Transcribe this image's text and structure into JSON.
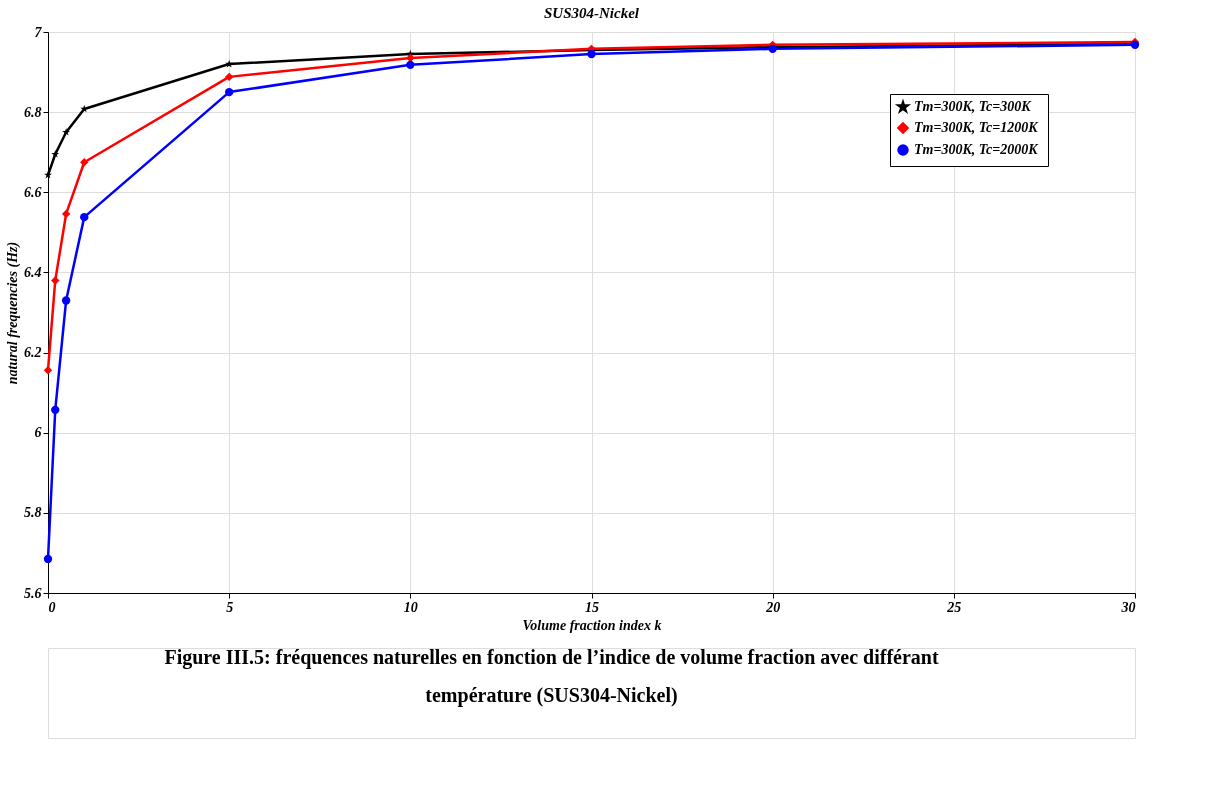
{
  "chart_data": {
    "type": "line",
    "title": "SUS304-Nickel",
    "xlabel": "Volume fraction index k",
    "ylabel": "natural frequencies (Hz)",
    "x": [
      0,
      0.2,
      0.5,
      1,
      5,
      10,
      15,
      20,
      30
    ],
    "series": [
      {
        "name": "Tm=300K,  Tc=300K",
        "color": "#000000",
        "marker": "star",
        "values": [
          6.643,
          6.695,
          6.75,
          6.808,
          6.92,
          6.945,
          6.955,
          6.962,
          6.97
        ]
      },
      {
        "name": "Tm=300K,  Tc=1200K",
        "color": "#ff0000",
        "marker": "diamond",
        "values": [
          6.156,
          6.38,
          6.546,
          6.675,
          6.888,
          6.935,
          6.958,
          6.968,
          6.975
        ]
      },
      {
        "name": "Tm=300K,  Tc=2000K",
        "color": "#0000ff",
        "marker": "circle",
        "values": [
          5.685,
          6.057,
          6.33,
          6.538,
          6.85,
          6.918,
          6.945,
          6.958,
          6.968
        ]
      }
    ],
    "xlim": [
      0,
      30
    ],
    "xticks": [
      0,
      5,
      10,
      15,
      20,
      25,
      30
    ],
    "ylim": [
      5.6,
      7
    ],
    "yticks": [
      5.6,
      5.8,
      6,
      6.2,
      6.4,
      6.6,
      6.8,
      7
    ],
    "grid": true,
    "legend": "top right",
    "line_style": "solid",
    "annotations": [
      "Figure III.5: fréquences naturelles en fonction de l’indice de volume fraction avec différant température (SUS304-Nickel)"
    ]
  }
}
